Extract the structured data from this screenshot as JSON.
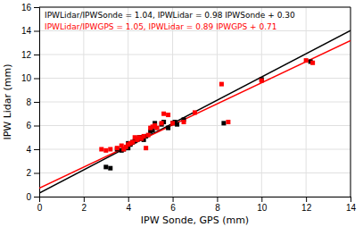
{
  "chart_data": {
    "type": "scatter",
    "xlabel": "IPW Sonde, GPS (mm)",
    "ylabel": "IPW Lidar (mm)",
    "xlim": [
      0,
      14
    ],
    "ylim": [
      0,
      16
    ],
    "xticks": [
      0,
      2,
      4,
      6,
      8,
      10,
      12,
      14
    ],
    "yticks": [
      0,
      2,
      4,
      6,
      8,
      10,
      12,
      14,
      16
    ],
    "grid": true,
    "series": [
      {
        "type": "scatter",
        "color": "black",
        "marker": "square",
        "x": [
          3.0,
          3.2,
          3.5,
          3.7,
          3.8,
          4.0,
          4.0,
          4.1,
          4.2,
          4.3,
          4.4,
          4.5,
          4.5,
          4.6,
          4.7,
          4.8,
          5.0,
          5.1,
          5.2,
          5.5,
          5.6,
          5.8,
          6.0,
          6.1,
          6.2,
          6.5,
          8.3,
          10.0,
          12.2
        ],
        "values": [
          2.5,
          2.4,
          4.0,
          3.9,
          4.0,
          4.1,
          4.5,
          4.4,
          4.6,
          4.7,
          4.8,
          4.9,
          5.0,
          5.0,
          4.8,
          5.1,
          5.5,
          5.6,
          6.2,
          6.1,
          6.3,
          5.8,
          6.2,
          6.3,
          6.1,
          6.5,
          6.2,
          9.9,
          11.4
        ]
      },
      {
        "type": "scatter",
        "color": "red",
        "marker": "square",
        "x": [
          2.8,
          3.0,
          3.2,
          3.5,
          3.7,
          3.8,
          3.9,
          4.0,
          4.1,
          4.2,
          4.3,
          4.4,
          4.5,
          4.6,
          4.7,
          4.8,
          4.9,
          5.0,
          5.1,
          5.2,
          5.3,
          5.5,
          5.6,
          5.8,
          6.0,
          6.5,
          7.0,
          8.2,
          8.5,
          10.0,
          12.0,
          12.3
        ],
        "values": [
          4.0,
          3.9,
          4.0,
          4.1,
          4.3,
          4.0,
          4.2,
          4.4,
          4.5,
          4.6,
          5.0,
          4.8,
          5.0,
          4.9,
          5.1,
          4.1,
          5.2,
          5.8,
          5.9,
          6.0,
          5.8,
          6.2,
          7.0,
          6.9,
          6.2,
          6.3,
          7.1,
          9.5,
          6.3,
          9.8,
          11.5,
          11.3
        ]
      },
      {
        "type": "line",
        "color": "black",
        "line_style": "solid",
        "x": [
          0,
          14
        ],
        "values": [
          0.3,
          14.02
        ]
      },
      {
        "type": "line",
        "color": "red",
        "line_style": "solid",
        "x": [
          0,
          14
        ],
        "values": [
          0.71,
          13.17
        ]
      }
    ],
    "annotations": [
      {
        "text": "IPWLidar/IPWSonde = 1.04,  IPWLidar = 0.98 IPWSonde + 0.30",
        "color": "black"
      },
      {
        "text": "IPWLidar/IPWGPS = 1.05,  IPWLidar = 0.89 IPWGPS + 0.71",
        "color": "red"
      }
    ]
  }
}
